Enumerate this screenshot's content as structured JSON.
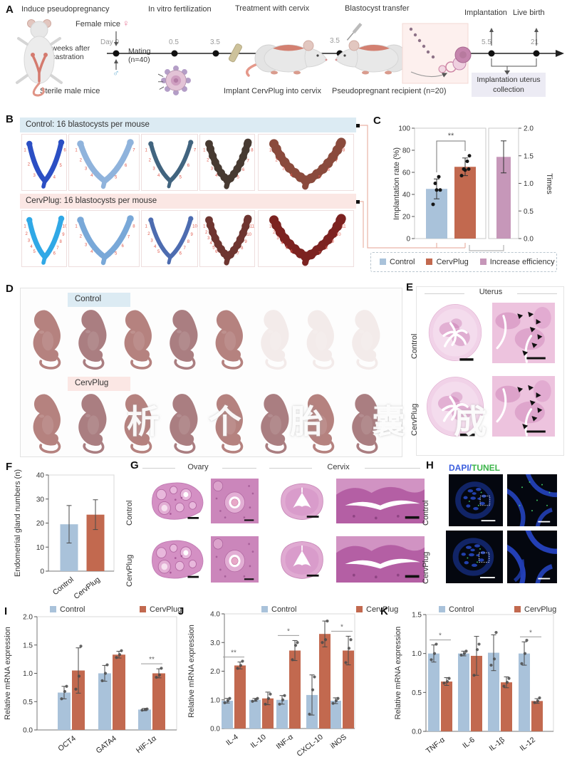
{
  "colors": {
    "control": "#a9c2da",
    "cervplug": "#c2694f",
    "efficiency": "#c697b9",
    "dapi": "#3b5ede",
    "tunel": "#3cb54a",
    "control_bg": "#dcebf3",
    "cervplug_bg": "#fbe7e4"
  },
  "panel_a": {
    "label": "A",
    "steps": [
      "Induce pseudopregnancy",
      "In vitro fertilization",
      "Treatment with cervix",
      "Blastocyst transfer",
      "Implantation",
      "Live birth"
    ],
    "female_label": "Female mice",
    "female_symbol": "♀",
    "male_symbol": "♂",
    "male_label": "Sterile male mice",
    "castration_label": "2 weeks after castration",
    "day0_label": "Day 0",
    "mating_label": "Mating (n=40)",
    "ticks": [
      "0.5",
      "3.5",
      "3.5",
      "5.5",
      "21"
    ],
    "implant_label": "Implant CervPlug into cervix",
    "recipient_label": "Pseudopregnant recipient (n=20)",
    "collection_label": "Implantation uterus collection"
  },
  "panel_b": {
    "label": "B",
    "groups": [
      {
        "title": "Control: 16 blastocysts per mouse",
        "counts": [
          6,
          7,
          7,
          8,
          8
        ],
        "colors": [
          "#2b4fc4",
          "#8fb3dc",
          "#41647f",
          "#473a31",
          "#8a4a3c"
        ]
      },
      {
        "title": "CervPlug: 16 blastocysts per mouse",
        "counts": [
          10,
          8,
          10,
          11,
          11
        ],
        "colors": [
          "#30a8e6",
          "#79a8d8",
          "#4d6cb0",
          "#6e3530",
          "#7c2220"
        ]
      }
    ]
  },
  "panel_c": {
    "label": "C"
  },
  "panel_d": {
    "label": "D",
    "control_label": "Control",
    "cervplug_label": "CervPlug",
    "watermark": "析 个 胎 囊 成",
    "control_pups": 5,
    "control_ghost_pups": 3,
    "cervplug_pups": 8
  },
  "panel_e": {
    "label": "E",
    "title": "Uterus",
    "row_labels": [
      "Control",
      "CervPlug"
    ]
  },
  "panel_f": {
    "label": "F"
  },
  "panel_g": {
    "label": "G",
    "col_labels": [
      "Ovary",
      "Cervix"
    ],
    "row_labels": [
      "Control",
      "CervPlug"
    ]
  },
  "panel_h": {
    "label": "H",
    "stain_dapi": "DAPI",
    "stain_sep": "/",
    "stain_tunel": "TUNEL",
    "row_labels": [
      "Control",
      "CervPlug"
    ]
  },
  "panel_i": {
    "label": "I"
  },
  "panel_j": {
    "label": "J"
  },
  "panel_k": {
    "label": "K"
  },
  "chart_data": [
    {
      "id": "C",
      "type": "bar",
      "panel": "C",
      "left": {
        "ylabel": "Implantation rate (%)",
        "ylim": [
          0,
          100
        ],
        "yticks": [
          "0",
          "20",
          "40",
          "60",
          "80",
          "100"
        ],
        "categories": [
          "Control",
          "CervPlug"
        ],
        "values": [
          45,
          65
        ],
        "err": [
          9,
          8
        ],
        "points": [
          [
            31,
            44,
            44,
            50,
            56
          ],
          [
            57,
            62,
            63,
            63,
            70,
            75
          ]
        ],
        "sig_label": "**"
      },
      "right": {
        "ylabel": "Times",
        "ylim": [
          0,
          2
        ],
        "yticks": [
          "0.0",
          "0.5",
          "1.0",
          "1.5",
          "2.0"
        ],
        "categories": [
          "Increase efficiency"
        ],
        "values": [
          1.48
        ],
        "err": [
          0.29
        ]
      },
      "legend": [
        {
          "label": "Control",
          "color": "control"
        },
        {
          "label": "CervPlug",
          "color": "cervplug"
        },
        {
          "label": "Increase efficiency",
          "color": "efficiency"
        }
      ]
    },
    {
      "id": "F",
      "type": "bar",
      "panel": "F",
      "ylabel": "Endometrial gland numbers (n)",
      "ylim": [
        0,
        40
      ],
      "yticks": [
        "0",
        "10",
        "20",
        "30",
        "40"
      ],
      "categories": [
        "Control",
        "CervPlug"
      ],
      "rotate": true,
      "barColors": [
        "control",
        "cervplug"
      ],
      "series": [
        {
          "name": "",
          "color": "control",
          "values": [
            19.5,
            23.5
          ],
          "err": [
            7.8,
            6.2
          ]
        }
      ]
    },
    {
      "id": "I",
      "type": "grouped-bar",
      "panel": "I",
      "ylabel": "Relative mRNA expression",
      "ylim": [
        0,
        2
      ],
      "yticks": [
        "0.0",
        "0.5",
        "1.0",
        "1.5",
        "2.0"
      ],
      "categories": [
        "OCT4",
        "GATA4",
        "HIF-1α"
      ],
      "rotate": true,
      "legend": [
        {
          "label": "Control",
          "color": "control"
        },
        {
          "label": "CervPlug",
          "color": "cervplug"
        }
      ],
      "series": [
        {
          "name": "Control",
          "color": "control",
          "values": [
            0.66,
            1.0,
            0.36
          ],
          "err": [
            0.11,
            0.14,
            0.02
          ],
          "points": [
            [
              0.55,
              0.68,
              0.77
            ],
            [
              0.87,
              1.0,
              1.15
            ],
            [
              0.35,
              0.36,
              0.37
            ]
          ]
        },
        {
          "name": "CervPlug",
          "color": "cervplug",
          "values": [
            1.05,
            1.33,
            1.0
          ],
          "err": [
            0.4,
            0.06,
            0.08
          ],
          "points": [
            [
              0.72,
              0.95,
              1.48
            ],
            [
              1.28,
              1.33,
              1.4
            ],
            [
              0.93,
              0.97,
              1.09
            ]
          ]
        }
      ],
      "sig": [
        {
          "cat": 2,
          "label": "**"
        }
      ]
    },
    {
      "id": "J",
      "type": "grouped-bar",
      "panel": "J",
      "ylabel": "Relative mRNA expression",
      "ylim": [
        0,
        4
      ],
      "yticks": [
        "0.0",
        "1.0",
        "2.0",
        "3.0",
        "4.0"
      ],
      "categories": [
        "IL-4",
        "IL-10",
        "INF-α",
        "CXCL-10",
        "iNOS"
      ],
      "rotate": true,
      "legend": [
        {
          "label": "Control",
          "color": "control"
        },
        {
          "label": "CervPlug",
          "color": "cervplug"
        }
      ],
      "series": [
        {
          "name": "Control",
          "color": "control",
          "values": [
            0.97,
            1.0,
            1.0,
            1.17,
            0.97
          ],
          "err": [
            0.08,
            0.05,
            0.15,
            0.7,
            0.1
          ],
          "points": [
            [
              0.9,
              0.97,
              1.05
            ],
            [
              0.95,
              1.0,
              1.05
            ],
            [
              0.85,
              1.0,
              1.15
            ],
            [
              0.5,
              1.35,
              1.8
            ],
            [
              0.88,
              0.97,
              1.05
            ]
          ]
        },
        {
          "name": "CervPlug",
          "color": "cervplug",
          "values": [
            2.2,
            1.05,
            2.72,
            3.3,
            2.72
          ],
          "err": [
            0.12,
            0.22,
            0.35,
            0.45,
            0.5
          ],
          "points": [
            [
              2.1,
              2.2,
              2.35
            ],
            [
              0.85,
              1.05,
              1.2
            ],
            [
              2.4,
              2.9,
              3.0
            ],
            [
              3.0,
              3.1,
              3.75
            ],
            [
              2.3,
              2.8,
              3.1
            ]
          ]
        }
      ],
      "sig": [
        {
          "cat": 0,
          "label": "**"
        },
        {
          "cat": 2,
          "label": "*"
        },
        {
          "cat": 4,
          "label": "*"
        }
      ]
    },
    {
      "id": "K",
      "type": "grouped-bar",
      "panel": "K",
      "ylabel": "Relative mRNA expression",
      "ylim": [
        0,
        1.5
      ],
      "yticks": [
        "0.0",
        "0.5",
        "1.0",
        "1.5"
      ],
      "categories": [
        "TNF-α",
        "IL-6",
        "IL-1β",
        "IL-12"
      ],
      "rotate": true,
      "legend": [
        {
          "label": "Control",
          "color": "control"
        },
        {
          "label": "CervPlug",
          "color": "cervplug"
        }
      ],
      "series": [
        {
          "name": "Control",
          "color": "control",
          "values": [
            1.0,
            1.0,
            1.01,
            1.0
          ],
          "err": [
            0.11,
            0.03,
            0.23,
            0.15
          ],
          "points": [
            [
              0.92,
              1.0,
              1.12
            ],
            [
              0.98,
              1.0,
              1.03
            ],
            [
              0.85,
              0.93,
              1.27
            ],
            [
              0.87,
              1.0,
              1.17
            ]
          ]
        },
        {
          "name": "CervPlug",
          "color": "cervplug",
          "values": [
            0.64,
            0.97,
            0.63,
            0.39
          ],
          "err": [
            0.05,
            0.25,
            0.07,
            0.03
          ],
          "points": [
            [
              0.62,
              0.64,
              0.68
            ],
            [
              0.72,
              1.05,
              1.12
            ],
            [
              0.58,
              0.63,
              0.68
            ],
            [
              0.37,
              0.39,
              0.43
            ]
          ]
        }
      ],
      "sig": [
        {
          "cat": 0,
          "label": "*"
        },
        {
          "cat": 3,
          "label": "*"
        }
      ]
    }
  ]
}
